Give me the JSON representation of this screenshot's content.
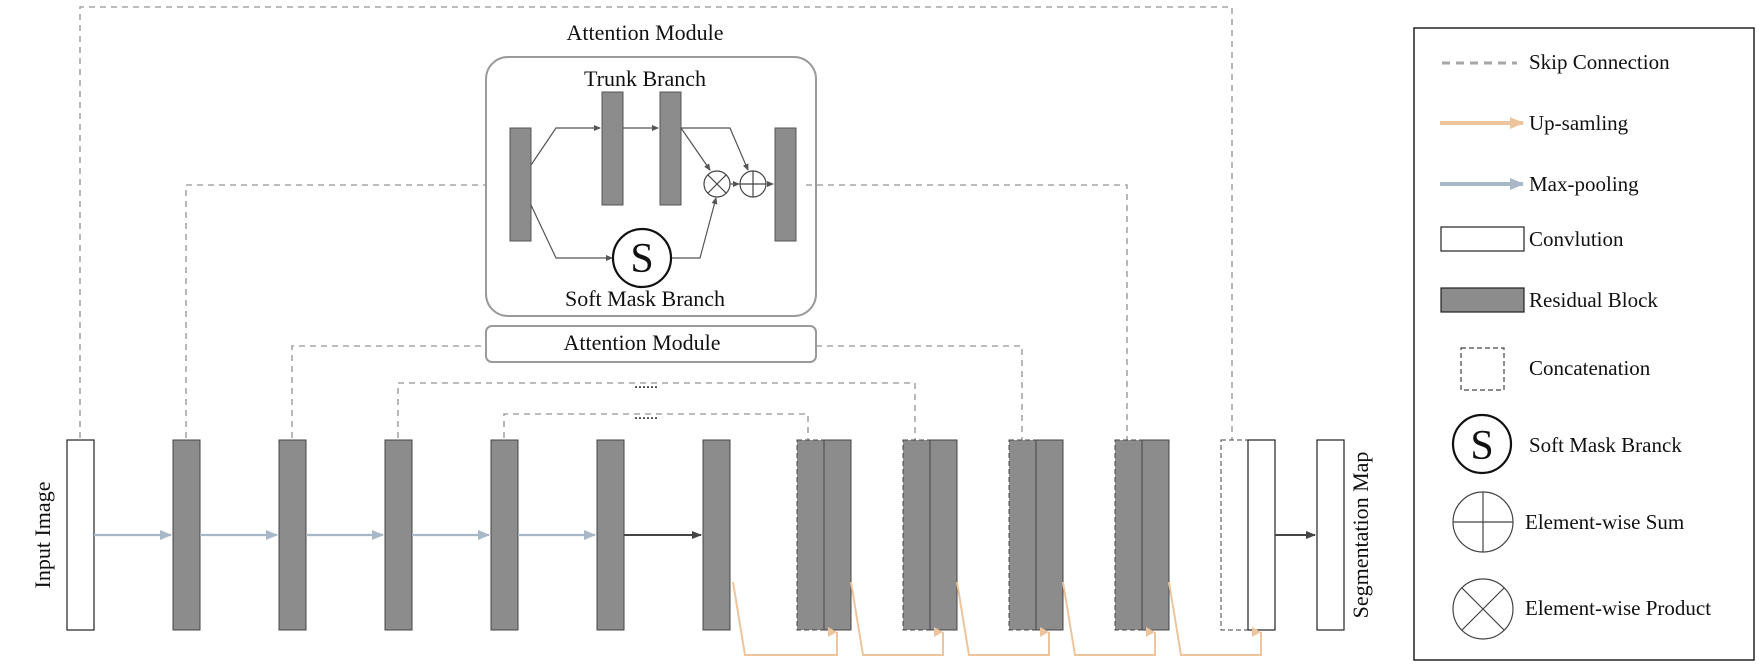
{
  "diagram": {
    "labels": {
      "attention_module_title": "Attention Module",
      "trunk_branch": "Trunk Branch",
      "soft_mask_branch": "Soft Mask Branch",
      "soft_mask_symbol": "S",
      "attention_module_box": "Attention Module",
      "dots_1": "......",
      "dots_2": "......",
      "input_image": "Input Image",
      "segmentation_map": "Segmentation Map"
    },
    "colors": {
      "residual_fill": "#8c8c8c",
      "skip_line": "#a6a6a6",
      "upsample": "#eec49c",
      "maxpool": "#a9b8c8",
      "frame": "#000000"
    }
  },
  "legend": {
    "items": [
      {
        "key": "skip",
        "label": "Skip Connection"
      },
      {
        "key": "upsample",
        "label": "Up-samling"
      },
      {
        "key": "maxpool",
        "label": "Max-pooling"
      },
      {
        "key": "conv",
        "label": "Convlution"
      },
      {
        "key": "residual",
        "label": "Residual Block"
      },
      {
        "key": "concat",
        "label": "Concatenation"
      },
      {
        "key": "softmask",
        "label": "Soft Mask Branck",
        "symbol": "S"
      },
      {
        "key": "sum",
        "label": "Element-wise Sum"
      },
      {
        "key": "product",
        "label": "Element-wise Product"
      }
    ]
  }
}
